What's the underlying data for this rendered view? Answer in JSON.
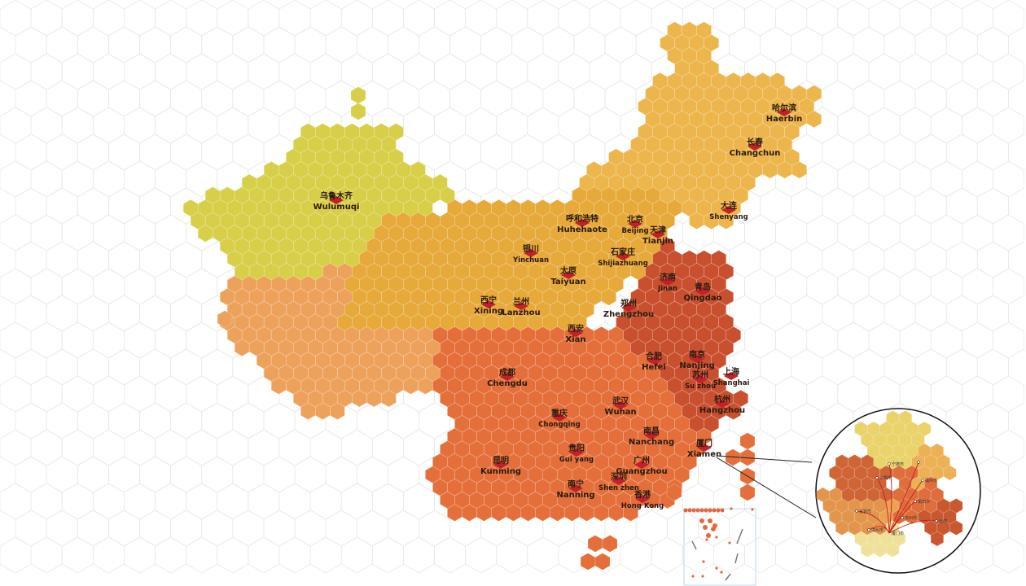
{
  "map": {
    "type": "hexagon tile map",
    "colors": {
      "northwest": "#d8cf48",
      "west": "#eda25c",
      "north": "#e6a93a",
      "northeast": "#ecb64c",
      "south": "#e46f3a",
      "east": "#c8502e",
      "marker": "#c4202a",
      "grid": "#e8e8e8"
    },
    "cities": [
      {
        "cn": "乌鲁木齐",
        "en": "Wulumuqi"
      },
      {
        "cn": "哈尔滨",
        "en": "Haerbin"
      },
      {
        "cn": "长春",
        "en": "Changchun"
      },
      {
        "cn": "大连",
        "en": "Shenyang"
      },
      {
        "cn": "呼和浩特",
        "en": "Huhehaote"
      },
      {
        "cn": "北京",
        "en": "Beijing"
      },
      {
        "cn": "天津",
        "en": "Tianjin"
      },
      {
        "cn": "银川",
        "en": "Yinchuan"
      },
      {
        "cn": "石家庄",
        "en": "Shijiazhuang"
      },
      {
        "cn": "太原",
        "en": "Taiyuan"
      },
      {
        "cn": "济南",
        "en": "Jinan"
      },
      {
        "cn": "青岛",
        "en": "Qingdao"
      },
      {
        "cn": "西宁",
        "en": "Xining"
      },
      {
        "cn": "兰州",
        "en": "Lanzhou"
      },
      {
        "cn": "郑州",
        "en": "Zhengzhou"
      },
      {
        "cn": "西安",
        "en": "Xian"
      },
      {
        "cn": "成都",
        "en": "Chengdu"
      },
      {
        "cn": "合肥",
        "en": "Hefei"
      },
      {
        "cn": "南京",
        "en": "Nanjing"
      },
      {
        "cn": "苏州",
        "en": "Su zhou"
      },
      {
        "cn": "上海",
        "en": "Shanghai"
      },
      {
        "cn": "杭州",
        "en": "Hangzhou"
      },
      {
        "cn": "武汉",
        "en": "Wuhan"
      },
      {
        "cn": "重庆",
        "en": "Chongqing"
      },
      {
        "cn": "南昌",
        "en": "Nanchang"
      },
      {
        "cn": "厦门",
        "en": "Xiamen"
      },
      {
        "cn": "贵阳",
        "en": "Gui yang"
      },
      {
        "cn": "昆明",
        "en": "Kunming"
      },
      {
        "cn": "广州",
        "en": "Guangzhou"
      },
      {
        "cn": "深圳",
        "en": "Shen zhen"
      },
      {
        "cn": "南宁",
        "en": "Nanning"
      },
      {
        "cn": "香港",
        "en": "Hong Kong"
      }
    ],
    "inset": {
      "labels": [
        "宁德市",
        "三明市",
        "福州市",
        "莆田市",
        "泉州市",
        "龙岩市",
        "漳州市",
        "厦门市",
        "台湾"
      ]
    }
  }
}
